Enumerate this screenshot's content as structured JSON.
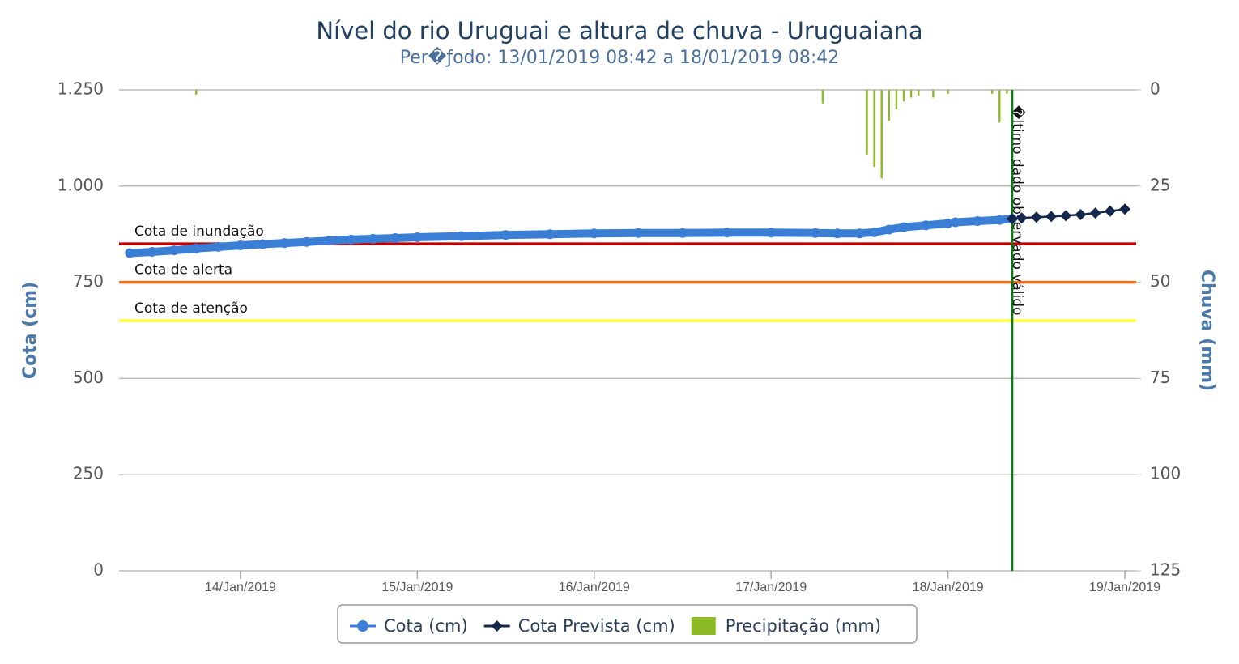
{
  "chart_data": {
    "type": "line",
    "title": "Nível do rio Uruguai e altura de chuva - Uruguaiana",
    "subtitle": "Per�ƒodo: 13/01/2019 08:42 a 18/01/2019 08:42",
    "y_label": "Cota (cm)",
    "y2_label": "Chuva (mm)",
    "xlim": [
      "2019-01-13T07:32",
      "2019-01-19T01:32"
    ],
    "xticks": [
      {
        "value": "2019-01-14",
        "label": "14/Jan/2019"
      },
      {
        "value": "2019-01-15",
        "label": "15/Jan/2019"
      },
      {
        "value": "2019-01-16",
        "label": "16/Jan/2019"
      },
      {
        "value": "2019-01-17",
        "label": "17/Jan/2019"
      },
      {
        "value": "2019-01-18",
        "label": "18/Jan/2019"
      },
      {
        "value": "2019-01-19",
        "label": "19/Jan/2019"
      }
    ],
    "ylim": [
      0,
      1250
    ],
    "yticks": [
      0,
      250,
      500,
      750,
      {
        "value": 1000,
        "label": "1.000"
      },
      {
        "value": 1250,
        "label": "1.250"
      }
    ],
    "y2lim": [
      125,
      0
    ],
    "y2ticks": [
      0,
      25,
      50,
      75,
      100,
      125
    ],
    "grid": true,
    "plot_lines": [
      {
        "label": "Cota de inundação",
        "value": 850,
        "color": "#c00000"
      },
      {
        "label": "Cota de alerta",
        "value": 750,
        "color": "#f07020"
      },
      {
        "label": "Cota de atenção",
        "value": 650,
        "color": "#ffff33"
      }
    ],
    "marker_line": {
      "label": "�ltimo dado observado válido",
      "x": "2019-01-18T08:42",
      "color": "#0a7a0a"
    },
    "series": [
      {
        "name": "Cota (cm)",
        "kind": "line",
        "marker": "circle",
        "color": "#3a7fd5",
        "x": [
          "2019-01-13T09:00",
          "2019-01-13T12:00",
          "2019-01-13T15:00",
          "2019-01-13T18:00",
          "2019-01-13T21:00",
          "2019-01-14T00:00",
          "2019-01-14T03:00",
          "2019-01-14T06:00",
          "2019-01-14T09:00",
          "2019-01-14T12:00",
          "2019-01-14T15:00",
          "2019-01-14T18:00",
          "2019-01-14T21:00",
          "2019-01-15T00:00",
          "2019-01-15T06:00",
          "2019-01-15T12:00",
          "2019-01-15T18:00",
          "2019-01-16T00:00",
          "2019-01-16T06:00",
          "2019-01-16T12:00",
          "2019-01-16T18:00",
          "2019-01-17T00:00",
          "2019-01-17T06:00",
          "2019-01-17T09:00",
          "2019-01-17T12:00",
          "2019-01-17T14:00",
          "2019-01-17T16:00",
          "2019-01-17T18:00",
          "2019-01-17T21:00",
          "2019-01-18T00:00",
          "2019-01-18T00:30",
          "2019-01-18T01:00",
          "2019-01-18T04:00",
          "2019-01-18T07:00",
          "2019-01-18T08:42"
        ],
        "values": [
          826,
          829,
          833,
          838,
          842,
          846,
          849,
          852,
          855,
          858,
          861,
          863,
          865,
          867,
          870,
          873,
          875,
          877,
          878,
          878,
          879,
          879,
          878,
          877,
          877,
          880,
          887,
          893,
          898,
          903,
          null,
          906,
          909,
          912,
          915
        ]
      },
      {
        "name": "Cota Prevista (cm)",
        "kind": "line",
        "marker": "diamond",
        "color": "#14284b",
        "x": [
          "2019-01-18T08:42",
          "2019-01-18T10:00",
          "2019-01-18T12:00",
          "2019-01-18T14:00",
          "2019-01-18T16:00",
          "2019-01-18T18:00",
          "2019-01-18T20:00",
          "2019-01-18T22:00",
          "2019-01-19T00:00"
        ],
        "values": [
          915,
          917,
          919,
          921,
          923,
          926,
          930,
          935,
          940
        ]
      },
      {
        "name": "Precipitação (mm)",
        "kind": "bar",
        "axis": "y2",
        "color": "#8dbb25",
        "x": [
          "2019-01-13T18:00",
          "2019-01-17T07:00",
          "2019-01-17T13:00",
          "2019-01-17T14:00",
          "2019-01-17T15:00",
          "2019-01-17T16:00",
          "2019-01-17T17:00",
          "2019-01-17T18:00",
          "2019-01-17T19:00",
          "2019-01-17T20:00",
          "2019-01-17T22:00",
          "2019-01-18T00:00",
          "2019-01-18T06:00",
          "2019-01-18T07:00",
          "2019-01-18T08:00"
        ],
        "values": [
          1.2,
          3.5,
          17,
          20,
          23,
          8,
          5,
          3,
          2,
          1.5,
          2,
          1,
          1,
          8.5,
          1
        ]
      }
    ]
  }
}
